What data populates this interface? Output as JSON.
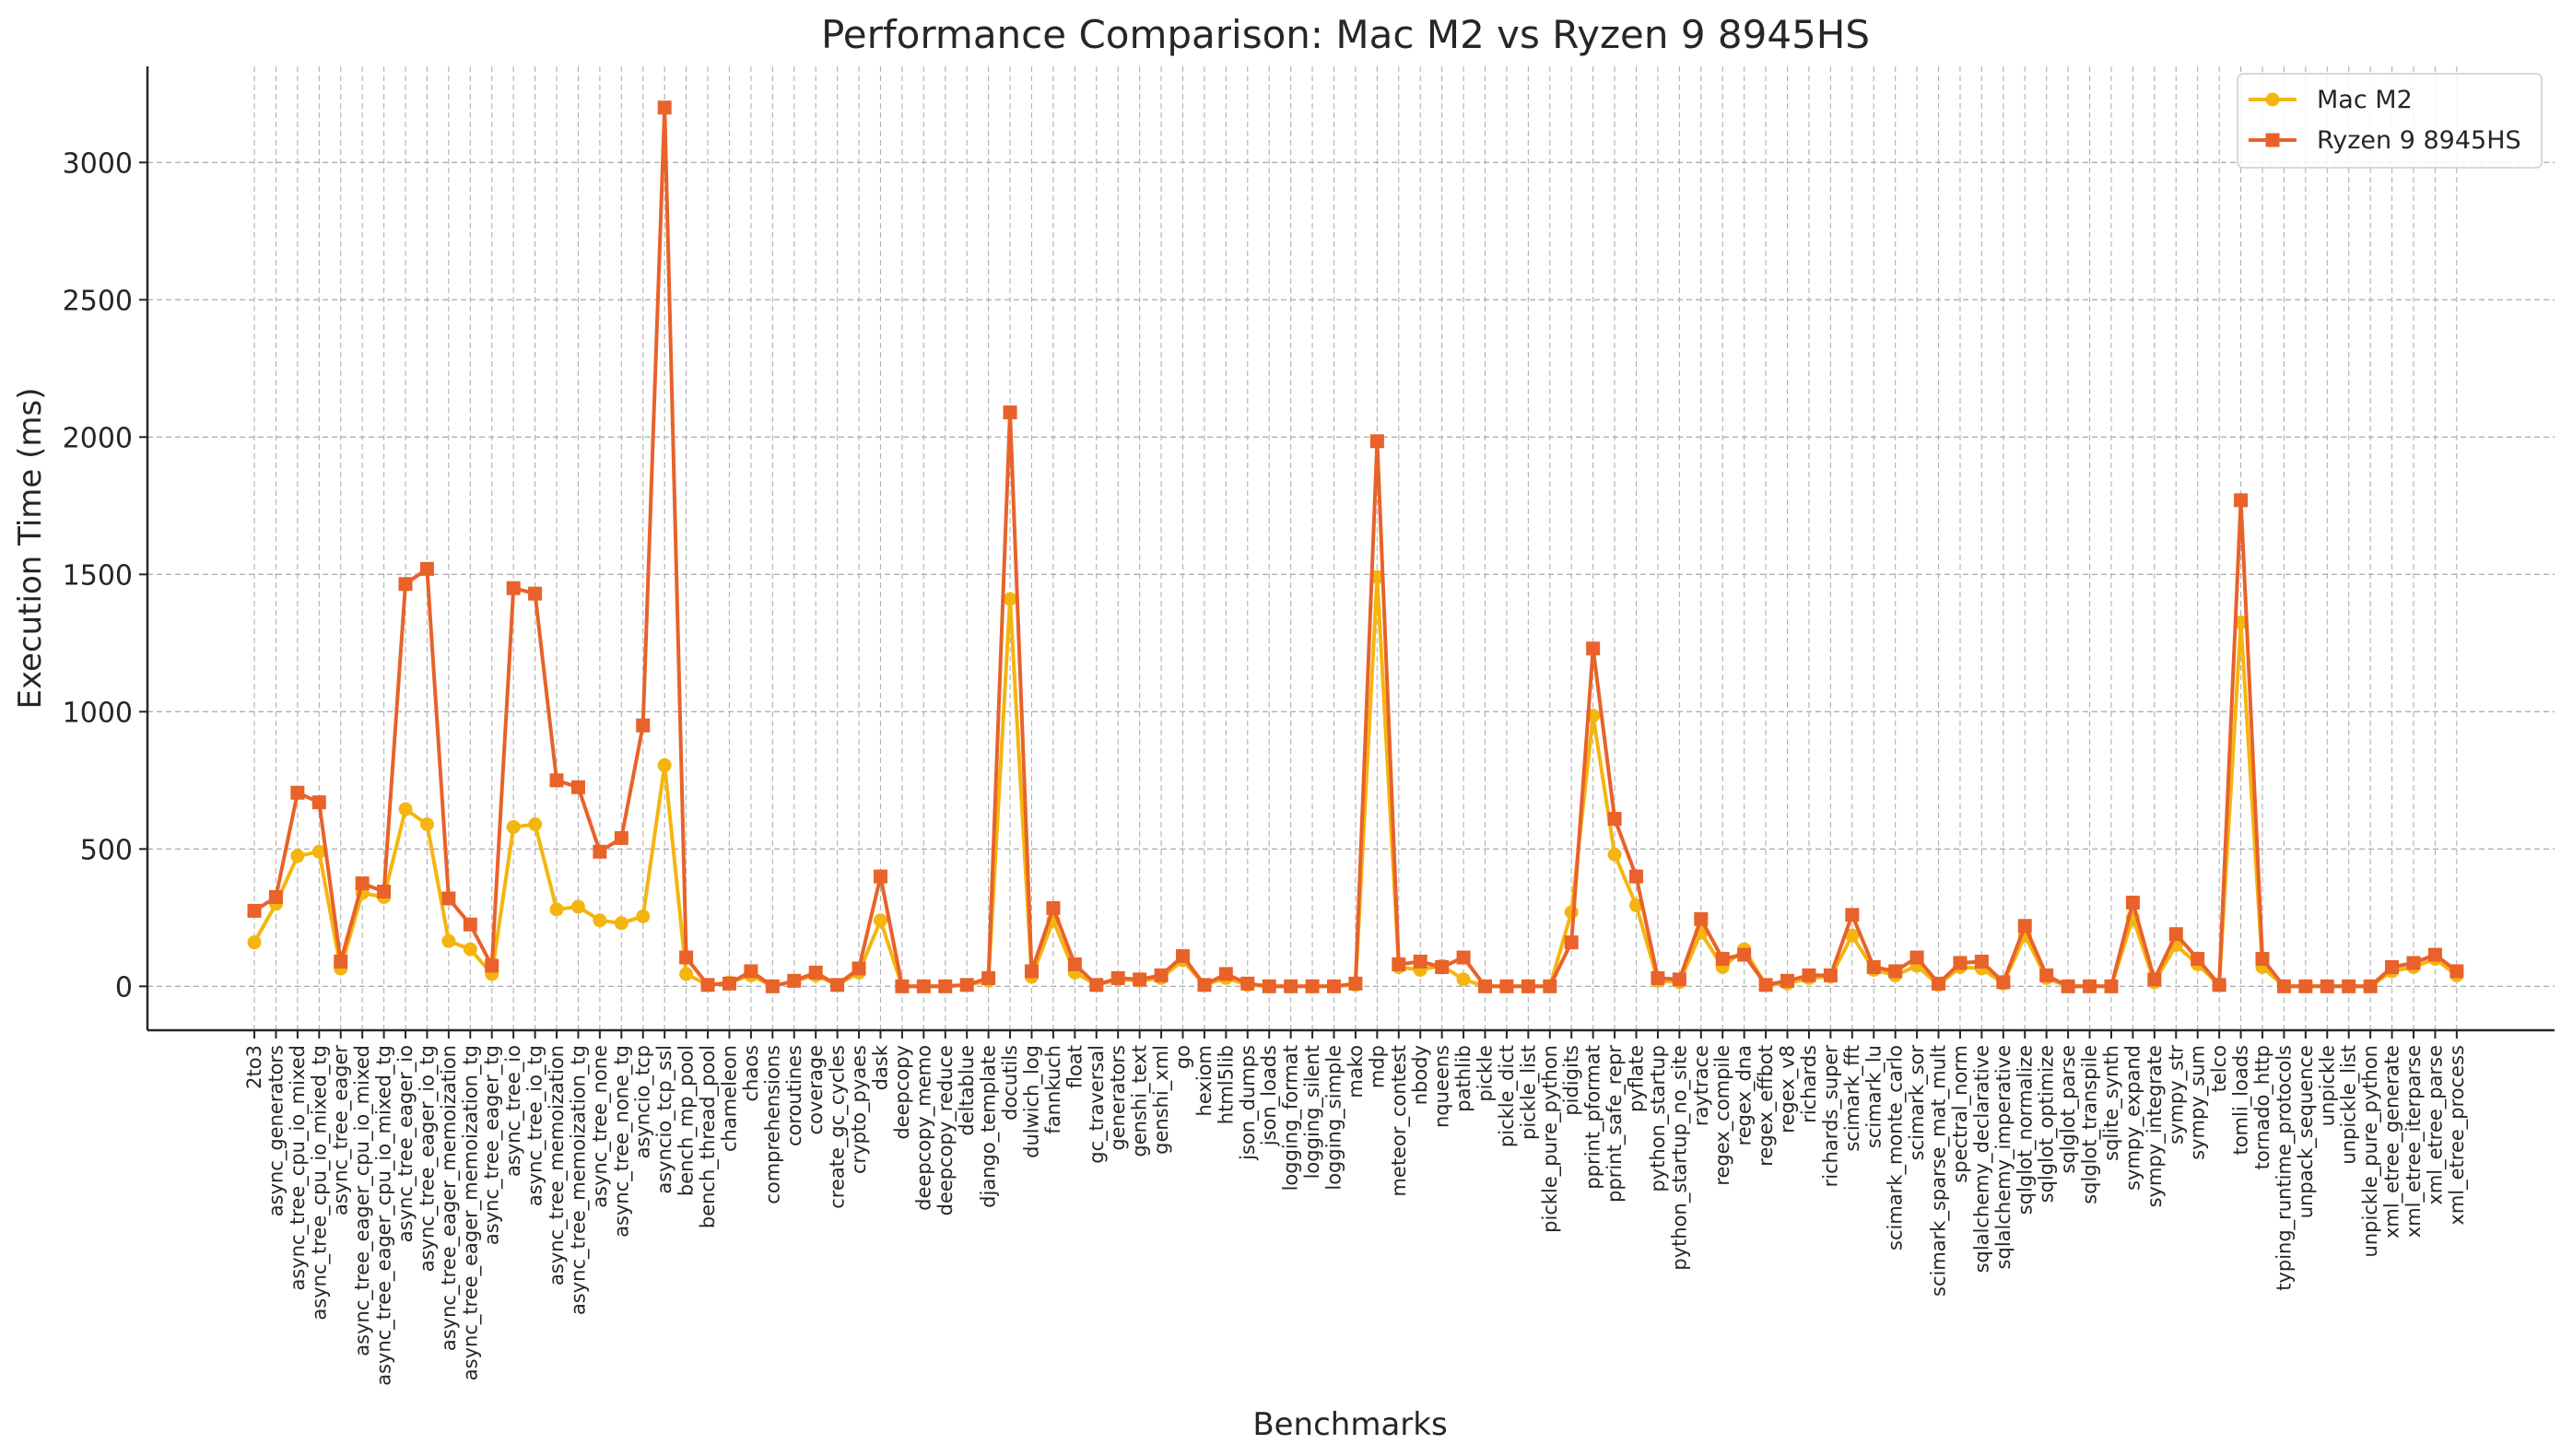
{
  "chart_data": {
    "type": "line",
    "title": "Performance Comparison: Mac M2 vs Ryzen 9 8945HS",
    "xlabel": "Benchmarks",
    "ylabel": "Execution Time (ms)",
    "ylim": [
      -160,
      3350
    ],
    "yticks": [
      0,
      500,
      1000,
      1500,
      2000,
      2500,
      3000
    ],
    "grid": true,
    "legend_position": "top-right",
    "categories": [
      "2to3",
      "async_generators",
      "async_tree_cpu_io_mixed",
      "async_tree_cpu_io_mixed_tg",
      "async_tree_eager",
      "async_tree_eager_cpu_io_mixed",
      "async_tree_eager_cpu_io_mixed_tg",
      "async_tree_eager_io",
      "async_tree_eager_io_tg",
      "async_tree_eager_memoization",
      "async_tree_eager_memoization_tg",
      "async_tree_eager_tg",
      "async_tree_io",
      "async_tree_io_tg",
      "async_tree_memoization",
      "async_tree_memoization_tg",
      "async_tree_none",
      "async_tree_none_tg",
      "asyncio_tcp",
      "asyncio_tcp_ssl",
      "bench_mp_pool",
      "bench_thread_pool",
      "chameleon",
      "chaos",
      "comprehensions",
      "coroutines",
      "coverage",
      "create_gc_cycles",
      "crypto_pyaes",
      "dask",
      "deepcopy",
      "deepcopy_memo",
      "deepcopy_reduce",
      "deltablue",
      "django_template",
      "docutils",
      "dulwich_log",
      "fannkuch",
      "float",
      "gc_traversal",
      "generators",
      "genshi_text",
      "genshi_xml",
      "go",
      "hexiom",
      "html5lib",
      "json_dumps",
      "json_loads",
      "logging_format",
      "logging_silent",
      "logging_simple",
      "mako",
      "mdp",
      "meteor_contest",
      "nbody",
      "nqueens",
      "pathlib",
      "pickle",
      "pickle_dict",
      "pickle_list",
      "pickle_pure_python",
      "pidigits",
      "pprint_pformat",
      "pprint_safe_repr",
      "pyflate",
      "python_startup",
      "python_startup_no_site",
      "raytrace",
      "regex_compile",
      "regex_dna",
      "regex_effbot",
      "regex_v8",
      "richards",
      "richards_super",
      "scimark_fft",
      "scimark_lu",
      "scimark_monte_carlo",
      "scimark_sor",
      "scimark_sparse_mat_mult",
      "spectral_norm",
      "sqlalchemy_declarative",
      "sqlalchemy_imperative",
      "sqlglot_normalize",
      "sqlglot_optimize",
      "sqlglot_parse",
      "sqlglot_transpile",
      "sqlite_synth",
      "sympy_expand",
      "sympy_integrate",
      "sympy_str",
      "sympy_sum",
      "telco",
      "tomli_loads",
      "tornado_http",
      "typing_runtime_protocols",
      "unpack_sequence",
      "unpickle",
      "unpickle_list",
      "unpickle_pure_python",
      "xml_etree_generate",
      "xml_etree_iterparse",
      "xml_etree_parse",
      "xml_etree_process"
    ],
    "series": [
      {
        "name": "Mac M2",
        "color": "#f5b50f",
        "marker": "circle",
        "values": [
          160,
          300,
          475,
          490,
          65,
          340,
          325,
          645,
          590,
          165,
          135,
          45,
          580,
          590,
          280,
          290,
          240,
          230,
          255,
          805,
          45,
          5,
          15,
          40,
          0,
          20,
          40,
          5,
          50,
          240,
          0,
          0,
          0,
          5,
          20,
          1410,
          35,
          240,
          50,
          5,
          25,
          20,
          30,
          95,
          5,
          30,
          5,
          0,
          0,
          0,
          0,
          5,
          1490,
          70,
          60,
          75,
          25,
          0,
          0,
          0,
          0,
          270,
          985,
          480,
          295,
          20,
          15,
          195,
          70,
          135,
          5,
          10,
          30,
          35,
          185,
          60,
          40,
          75,
          5,
          70,
          65,
          10,
          185,
          30,
          0,
          0,
          0,
          250,
          15,
          150,
          80,
          5,
          1325,
          70,
          0,
          0,
          0,
          0,
          0,
          55,
          70,
          100,
          40
        ]
      },
      {
        "name": "Ryzen 9 8945HS",
        "color": "#e8622a",
        "marker": "square",
        "values": [
          275,
          325,
          705,
          670,
          90,
          375,
          345,
          1465,
          1520,
          320,
          225,
          75,
          1450,
          1430,
          750,
          725,
          490,
          540,
          950,
          3200,
          105,
          5,
          10,
          55,
          0,
          20,
          50,
          5,
          65,
          400,
          0,
          0,
          0,
          5,
          30,
          2090,
          55,
          285,
          80,
          5,
          30,
          25,
          40,
          110,
          5,
          45,
          10,
          0,
          0,
          0,
          0,
          10,
          1985,
          80,
          90,
          70,
          105,
          0,
          0,
          0,
          0,
          160,
          1230,
          610,
          400,
          30,
          25,
          245,
          100,
          115,
          5,
          20,
          40,
          40,
          260,
          70,
          55,
          105,
          10,
          85,
          90,
          15,
          220,
          40,
          0,
          0,
          0,
          305,
          25,
          190,
          100,
          5,
          1770,
          100,
          0,
          0,
          0,
          0,
          0,
          70,
          85,
          115,
          55
        ]
      }
    ]
  }
}
